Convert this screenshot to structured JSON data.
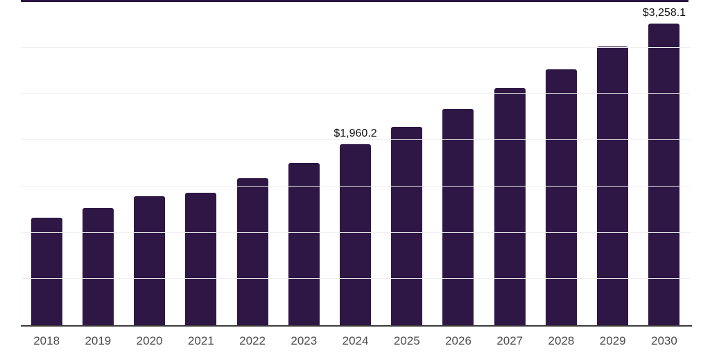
{
  "chart_data": {
    "type": "bar",
    "categories": [
      "2018",
      "2019",
      "2020",
      "2021",
      "2022",
      "2023",
      "2024",
      "2025",
      "2026",
      "2027",
      "2028",
      "2029",
      "2030"
    ],
    "values": [
      1160,
      1270,
      1393,
      1434,
      1591,
      1755,
      1960.2,
      2144,
      2342,
      2560,
      2769,
      3012,
      3258.1
    ],
    "data_labels": {
      "2024": "$1,960.2",
      "2030": "$3,258.1"
    },
    "title": "",
    "xlabel": "",
    "ylabel": "",
    "ylim": [
      0,
      3500
    ],
    "gridline_step": 500,
    "grid": "horizontal-faint",
    "legend": "none",
    "y_tick_labels_visible": false
  },
  "colors": {
    "bar": "#2e1745",
    "top_border": "#2a1540",
    "axis_line": "#3b3b3b",
    "gridline": "#efefef",
    "tick_label": "#4c4c4c",
    "data_label": "#121212",
    "background": "#ffffff"
  }
}
